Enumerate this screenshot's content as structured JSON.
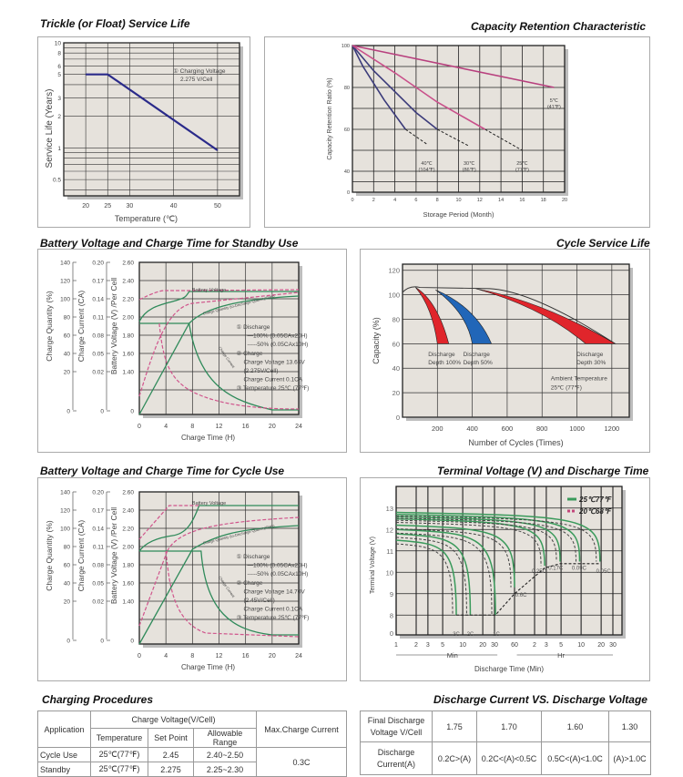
{
  "chart_data": [
    {
      "id": "trickle",
      "type": "line",
      "title": "Trickle (or Float) Service Life",
      "xlabel": "Temperature (℃)",
      "ylabel": "Service Life (Years)",
      "xticks": [
        "20",
        "25",
        "30",
        "40",
        "50"
      ],
      "yticks": [
        "10",
        "8",
        "6",
        "5",
        "3",
        "2",
        "1",
        "0.5"
      ],
      "xlim": [
        15,
        55
      ],
      "ylim": [
        0.35,
        10
      ],
      "yscale": "log",
      "annotation": [
        "① Charging Voltage",
        "2.275 V/Cell"
      ],
      "series": [
        {
          "name": "Service life",
          "x": [
            20,
            25,
            50
          ],
          "y": [
            5,
            5,
            0.95
          ]
        }
      ]
    },
    {
      "id": "retention",
      "type": "line",
      "title": "Capacity Retention  Characteristic",
      "xlabel": "Storage Period (Month)",
      "ylabel": "Capacity Retention Ratio (%)",
      "xticks": [
        "0",
        "2",
        "4",
        "6",
        "8",
        "10",
        "12",
        "14",
        "16",
        "18",
        "20"
      ],
      "yticks": [
        "100",
        "80",
        "60",
        "40",
        "0"
      ],
      "xlim": [
        0,
        20
      ],
      "series": [
        {
          "name": "40℃ (104℉)",
          "label": [
            "40℃",
            "(104℉)"
          ],
          "x": [
            0,
            1,
            2,
            3,
            4,
            5
          ],
          "y": [
            100,
            90,
            82,
            74,
            67,
            60
          ],
          "dashed_to": [
            7,
            53
          ]
        },
        {
          "name": "30℃ (86℉)",
          "label": [
            "30℃",
            "(86℉)"
          ],
          "x": [
            0,
            2,
            4,
            6,
            8
          ],
          "y": [
            100,
            88,
            78,
            68,
            60
          ],
          "dashed_to": [
            11,
            52
          ]
        },
        {
          "name": "25℃ (77℉)",
          "label": [
            "25℃",
            "(77℉)"
          ],
          "x": [
            0,
            4,
            8,
            12.5
          ],
          "y": [
            100,
            87,
            73,
            60
          ],
          "dashed_to": [
            16,
            50
          ]
        },
        {
          "name": "5℃ (41℉)",
          "label": [
            "5℃",
            "(41℉)"
          ],
          "x": [
            0,
            19
          ],
          "y": [
            100,
            80
          ]
        }
      ]
    },
    {
      "id": "standby",
      "type": "line",
      "title": "Battery Voltage and Charge Time for Standby Use",
      "xlabel": "Charge Time (H)",
      "xticks": [
        "0",
        "4",
        "8",
        "12",
        "16",
        "20",
        "24"
      ],
      "axis_quantity": {
        "label": "Charge Quantity (%)",
        "ticks": [
          "140",
          "120",
          "100",
          "80",
          "60",
          "40",
          "20",
          "0"
        ]
      },
      "axis_current": {
        "label": "Charge Current (CA)",
        "ticks": [
          "0.20",
          "0.17",
          "0.14",
          "0.11",
          "0.08",
          "0.05",
          "0.02",
          "0"
        ]
      },
      "axis_voltage": {
        "label": "Battery Voltage (V) /Per Cell",
        "ticks": [
          "2.60",
          "2.40",
          "2.20",
          "2.00",
          "1.80",
          "1.60",
          "1.40",
          "0"
        ]
      },
      "curve_labels": {
        "voltage": "Battery Voltage",
        "quantity": "Charge Quantity (to-Discharge Quantity)Ratio",
        "current": "Charge Current"
      },
      "notes": [
        "① Discharge",
        "—100% (0.05CAx20H)",
        "-----50% (0.05CAx10H)",
        "② Charge",
        "Charge Voltage 13.65V",
        "(2.275V/Cell)",
        "Charge Current 0.1CA",
        "③ Temperature 25℃ (77℉)"
      ]
    },
    {
      "id": "cycle_life",
      "type": "area",
      "title": "Cycle Service Life",
      "xlabel": "Number of Cycles (Times)",
      "ylabel": "Capacity (%)",
      "xticks": [
        "200",
        "400",
        "600",
        "800",
        "1000",
        "1200"
      ],
      "yticks": [
        "120",
        "100",
        "80",
        "60",
        "40",
        "20",
        "0"
      ],
      "xlim": [
        0,
        1300
      ],
      "ylim": [
        0,
        125
      ],
      "series": [
        {
          "name": "Discharge Depth 100%",
          "label": [
            "Discharge",
            "Depth 100%"
          ],
          "color": "#e0252b",
          "end_range": [
            200,
            265
          ]
        },
        {
          "name": "Discharge Depth 50%",
          "label": [
            "Discharge",
            "Depth 50%"
          ],
          "color": "#2166b8",
          "end_range": [
            400,
            510
          ]
        },
        {
          "name": "Discharge Depth 30%",
          "label": [
            "Discharge",
            "Depth 30%"
          ],
          "color": "#e0252b",
          "end_range": [
            1050,
            1220
          ]
        }
      ],
      "annotation": [
        "Ambient Temperature",
        "25℃ (77℉)"
      ]
    },
    {
      "id": "cycle_use",
      "type": "line",
      "title": "Battery Voltage and Charge Time for Cycle Use",
      "xlabel": "Charge Time (H)",
      "xticks": [
        "0",
        "4",
        "8",
        "12",
        "16",
        "20",
        "24"
      ],
      "axis_quantity": {
        "label": "Charge Quantity (%)",
        "ticks": [
          "140",
          "120",
          "100",
          "80",
          "60",
          "40",
          "20",
          "0"
        ]
      },
      "axis_current": {
        "label": "Charge Current (CA)",
        "ticks": [
          "0.20",
          "0.17",
          "0.14",
          "0.11",
          "0.08",
          "0.05",
          "0.02",
          "0"
        ]
      },
      "axis_voltage": {
        "label": "Battery Voltage (V) /Per Cell",
        "ticks": [
          "2.60",
          "2.40",
          "2.20",
          "2.00",
          "1.80",
          "1.60",
          "1.40",
          "0"
        ]
      },
      "curve_labels": {
        "voltage": "Battery Voltage",
        "quantity": "Charge Quantity (to-Discharge Quantity)Ratio",
        "current": "Charge Current"
      },
      "notes": [
        "① Discharge",
        "—100% (0.05CAx20H)",
        "-----50% (0.05CAx10H)",
        "② Charge",
        "Charge Voltage 14.70V",
        "(2.45V/Cell)",
        "Charge Current 0.1CA",
        "③ Temperature 25℃ (77℉)"
      ]
    },
    {
      "id": "terminal",
      "type": "line",
      "title": "Terminal Voltage (V) and Discharge Time",
      "xlabel": "Discharge Time (Min)",
      "ylabel": "Terminal Voltage (V)",
      "xticks": [
        "1",
        "2",
        "3",
        "5",
        "10",
        "20",
        "30",
        "60",
        "2",
        "3",
        "5",
        "10",
        "20",
        "30"
      ],
      "yticks": [
        "13",
        "12",
        "11",
        "10",
        "9",
        "8",
        "0"
      ],
      "min_label": "Min",
      "hr_label": "Hr",
      "legend": [
        {
          "label": "25℃77℉",
          "color": "#3a9a5b",
          "style": "solid"
        },
        {
          "label": "20℃68℉",
          "color": "#c2457a",
          "style": "dashed"
        }
      ],
      "rate_labels": [
        "3C",
        "2C",
        "1C",
        "0.6C",
        "0.25C",
        "0.17C",
        "0.09C",
        "0.05C"
      ]
    }
  ],
  "charging": {
    "title": "Charging Procedures",
    "headers": {
      "application": "Application",
      "charge_voltage": "Charge Voltage(V/Cell)",
      "temperature": "Temperature",
      "set_point": "Set Point",
      "range": "Allowable Range",
      "max_current": "Max.Charge Current"
    },
    "rows": [
      {
        "app": "Cycle Use",
        "temp": "25℃(77℉)",
        "set": "2.45",
        "range": "2.40~2.50"
      },
      {
        "app": "Standby",
        "temp": "25℃(77℉)",
        "set": "2.275",
        "range": "2.25~2.30"
      }
    ],
    "max_current": "0.3C"
  },
  "discharge": {
    "title": "Discharge Current VS. Discharge Voltage",
    "row1_label": [
      "Final Discharge",
      "Voltage V/Cell"
    ],
    "row2_label": [
      "Discharge",
      "Current(A)"
    ],
    "voltages": [
      "1.75",
      "1.70",
      "1.60",
      "1.30"
    ],
    "currents": [
      "0.2C>(A)",
      "0.2C<(A)<0.5C",
      "0.5C<(A)<1.0C",
      "(A)>1.0C"
    ]
  }
}
